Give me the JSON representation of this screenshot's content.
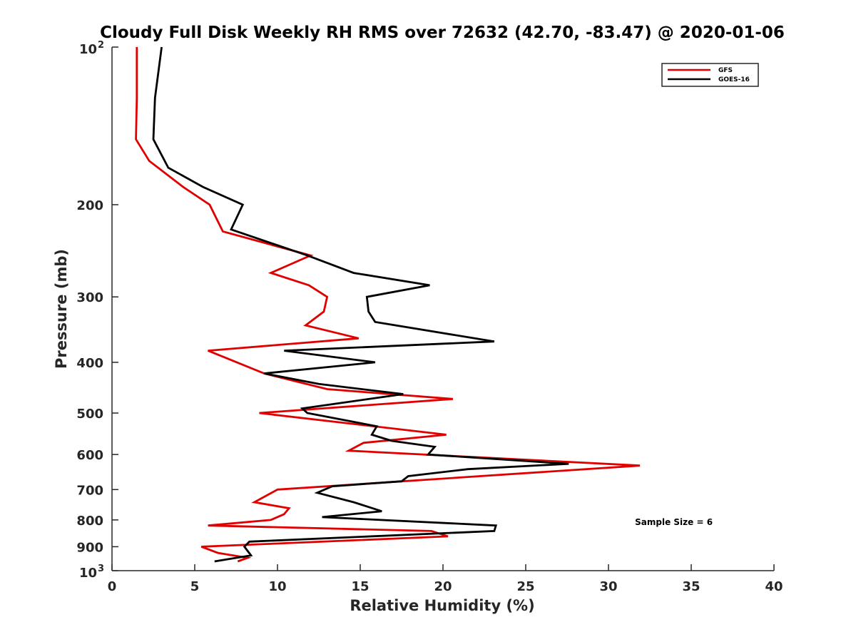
{
  "chart_data": {
    "type": "line",
    "title": "Cloudy Full Disk Weekly RH RMS over 72632 (42.70, -83.47) @ 2020-01-06",
    "xlabel": "Relative Humidity (%)",
    "ylabel": "Pressure (mb)",
    "xlim": [
      0,
      40
    ],
    "ylim": [
      100,
      1000
    ],
    "yscale": "log",
    "y_reversed": true,
    "xticks": [
      0,
      5,
      10,
      15,
      20,
      25,
      30,
      35,
      40
    ],
    "yticks": [
      {
        "value": 100,
        "base": "10",
        "exp": "2"
      },
      {
        "value": 200,
        "label": "200"
      },
      {
        "value": 300,
        "label": "300"
      },
      {
        "value": 400,
        "label": "400"
      },
      {
        "value": 500,
        "label": "500"
      },
      {
        "value": 600,
        "label": "600"
      },
      {
        "value": 700,
        "label": "700"
      },
      {
        "value": 800,
        "label": "800"
      },
      {
        "value": 900,
        "label": "900"
      },
      {
        "value": 1000,
        "base": "10",
        "exp": "3"
      }
    ],
    "grid": false,
    "legend_position": "top-right",
    "series": [
      {
        "name": "GFS",
        "color": "#e00000",
        "points": [
          [
            1.5,
            100
          ],
          [
            1.5,
            125
          ],
          [
            1.45,
            150
          ],
          [
            2.25,
            165
          ],
          [
            4.3,
            185
          ],
          [
            5.9,
            200
          ],
          [
            6.7,
            225
          ],
          [
            12.0,
            250
          ],
          [
            9.6,
            270
          ],
          [
            11.9,
            285
          ],
          [
            13.0,
            300
          ],
          [
            12.8,
            320
          ],
          [
            11.7,
            340
          ],
          [
            14.9,
            360
          ],
          [
            5.8,
            380
          ],
          [
            9.2,
            420
          ],
          [
            13.0,
            450
          ],
          [
            20.6,
            470
          ],
          [
            8.9,
            500
          ],
          [
            20.2,
            550
          ],
          [
            15.2,
            570
          ],
          [
            14.3,
            590
          ],
          [
            31.9,
            630
          ],
          [
            10.0,
            700
          ],
          [
            8.6,
            740
          ],
          [
            10.7,
            760
          ],
          [
            10.4,
            780
          ],
          [
            9.6,
            800
          ],
          [
            5.8,
            820
          ],
          [
            19.3,
            840
          ],
          [
            20.3,
            860
          ],
          [
            5.4,
            900
          ],
          [
            6.4,
            925
          ],
          [
            8.2,
            945
          ],
          [
            7.6,
            960
          ]
        ]
      },
      {
        "name": "GOES-16",
        "color": "#000000",
        "points": [
          [
            3.0,
            100
          ],
          [
            2.6,
            125
          ],
          [
            2.5,
            150
          ],
          [
            3.4,
            170
          ],
          [
            5.5,
            185
          ],
          [
            7.9,
            200
          ],
          [
            7.2,
            223
          ],
          [
            11.8,
            250
          ],
          [
            14.6,
            270
          ],
          [
            19.2,
            285
          ],
          [
            15.4,
            300
          ],
          [
            15.5,
            320
          ],
          [
            15.9,
            335
          ],
          [
            23.1,
            365
          ],
          [
            10.4,
            380
          ],
          [
            15.9,
            400
          ],
          [
            9.2,
            420
          ],
          [
            12.5,
            440
          ],
          [
            17.6,
            460
          ],
          [
            11.5,
            490
          ],
          [
            11.8,
            500
          ],
          [
            16.0,
            530
          ],
          [
            15.7,
            550
          ],
          [
            16.9,
            565
          ],
          [
            19.5,
            580
          ],
          [
            19.1,
            600
          ],
          [
            27.6,
            625
          ],
          [
            21.5,
            640
          ],
          [
            17.9,
            660
          ],
          [
            17.5,
            675
          ],
          [
            13.3,
            690
          ],
          [
            12.4,
            710
          ],
          [
            14.6,
            740
          ],
          [
            16.3,
            770
          ],
          [
            12.7,
            790
          ],
          [
            23.2,
            820
          ],
          [
            23.1,
            840
          ],
          [
            8.3,
            880
          ],
          [
            8.0,
            900
          ],
          [
            8.4,
            935
          ],
          [
            6.2,
            960
          ]
        ]
      }
    ],
    "annotations": [
      {
        "text": "Sample Size = 6",
        "x": 33,
        "y": 890
      }
    ]
  }
}
